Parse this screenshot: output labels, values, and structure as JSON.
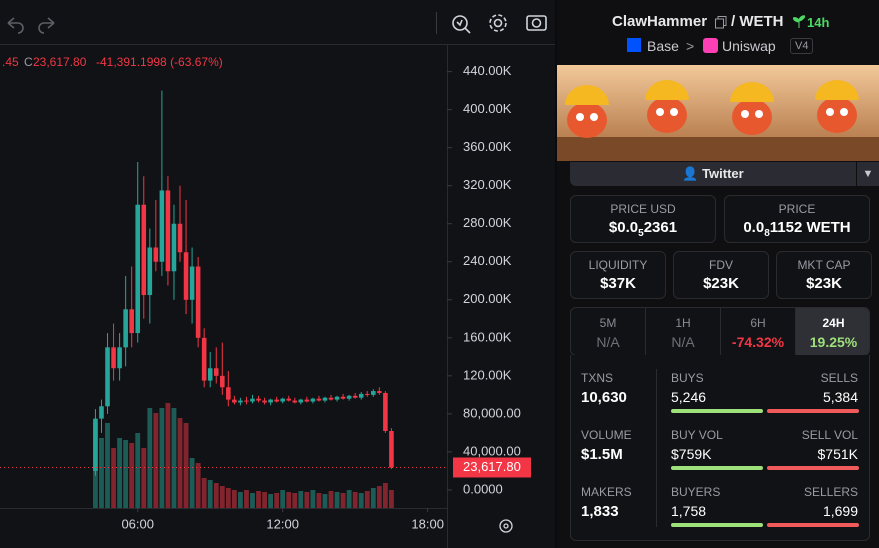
{
  "toolbar": {
    "legend": {
      "prefix": ".45",
      "c_label": "C",
      "close": "23,617.80",
      "change": "-41,391.1998 (-63.67%)"
    }
  },
  "chart": {
    "type": "candlestick",
    "x": [
      4.25,
      4.5,
      4.75,
      5,
      5.25,
      5.5,
      5.75,
      6,
      6.25,
      6.5,
      6.75,
      7,
      7.25,
      7.5,
      7.75,
      8,
      8.25,
      8.5,
      8.75,
      9,
      9.25,
      9.5,
      9.75,
      10,
      10.25,
      10.5,
      10.75,
      11,
      11.25,
      11.5,
      11.75,
      12,
      12.25,
      12.5,
      12.75,
      13,
      13.25,
      13.5,
      13.75,
      14,
      14.25,
      14.5,
      14.75,
      15,
      15.25,
      15.5,
      15.75,
      16,
      16.25,
      16.5
    ],
    "open": [
      20000,
      75000,
      88000,
      150000,
      128000,
      150000,
      190000,
      165000,
      300000,
      205000,
      255000,
      240000,
      315000,
      230000,
      280000,
      250000,
      200000,
      235000,
      160000,
      115000,
      128000,
      120000,
      108000,
      95000,
      92000,
      94000,
      93000,
      96000,
      94000,
      92000,
      95000,
      93000,
      96000,
      94000,
      92000,
      95000,
      93000,
      96000,
      94000,
      97000,
      95000,
      98000,
      96000,
      99000,
      97000,
      101000,
      100000,
      104000,
      102000,
      62000
    ],
    "high": [
      85000,
      95000,
      165000,
      175000,
      165000,
      225000,
      235000,
      345000,
      330000,
      275000,
      305000,
      420000,
      330000,
      300000,
      320000,
      305000,
      255000,
      245000,
      170000,
      145000,
      150000,
      155000,
      125000,
      99000,
      97000,
      98000,
      100000,
      99000,
      97000,
      96000,
      98000,
      97000,
      99000,
      97000,
      96000,
      98000,
      97000,
      99000,
      98000,
      100000,
      99000,
      101000,
      100000,
      102000,
      103000,
      104000,
      106000,
      108000,
      104000,
      65000
    ],
    "low": [
      15000,
      60000,
      80000,
      115000,
      115000,
      130000,
      150000,
      155000,
      180000,
      175000,
      230000,
      225000,
      215000,
      200000,
      240000,
      185000,
      175000,
      150000,
      108000,
      108000,
      112000,
      100000,
      88000,
      90000,
      89000,
      90000,
      91000,
      92000,
      90000,
      89000,
      92000,
      91000,
      93000,
      91000,
      90000,
      92000,
      91000,
      93000,
      92000,
      94000,
      93000,
      95000,
      94000,
      96000,
      95000,
      98000,
      98000,
      100000,
      60000,
      22000
    ],
    "close": [
      75000,
      88000,
      150000,
      128000,
      150000,
      190000,
      165000,
      300000,
      205000,
      255000,
      240000,
      315000,
      230000,
      280000,
      250000,
      200000,
      235000,
      160000,
      115000,
      128000,
      120000,
      108000,
      95000,
      92000,
      94000,
      93000,
      96000,
      94000,
      92000,
      95000,
      93000,
      96000,
      94000,
      92000,
      95000,
      93000,
      96000,
      94000,
      97000,
      95000,
      98000,
      96000,
      99000,
      97000,
      101000,
      100000,
      104000,
      102000,
      62000,
      23617.8
    ],
    "volume": [
      85,
      70,
      85,
      60,
      70,
      68,
      65,
      75,
      60,
      100,
      95,
      100,
      105,
      100,
      90,
      85,
      50,
      45,
      30,
      28,
      25,
      22,
      20,
      18,
      16,
      18,
      15,
      17,
      16,
      14,
      15,
      18,
      16,
      15,
      17,
      16,
      18,
      15,
      14,
      17,
      16,
      15,
      18,
      16,
      15,
      17,
      20,
      22,
      25,
      18
    ],
    "up_color": "#26a69a",
    "down_color": "#f23645",
    "xlim": [
      0.3,
      18.8
    ],
    "xticks": [
      {
        "value": 6,
        "label": "06:00"
      },
      {
        "value": 12,
        "label": "12:00"
      },
      {
        "value": 18,
        "label": "18:00"
      }
    ],
    "ylim": [
      -19000,
      468000
    ],
    "yticks": [
      {
        "value": 0,
        "label": "0.0000"
      },
      {
        "value": 40000,
        "label": "40,000.00"
      },
      {
        "value": 80000,
        "label": "80,000.00"
      },
      {
        "value": 120000,
        "label": "120.00K"
      },
      {
        "value": 160000,
        "label": "160.00K"
      },
      {
        "value": 200000,
        "label": "200.00K"
      },
      {
        "value": 240000,
        "label": "240.00K"
      },
      {
        "value": 280000,
        "label": "280.00K"
      },
      {
        "value": 320000,
        "label": "320.00K"
      },
      {
        "value": 360000,
        "label": "360.00K"
      },
      {
        "value": 400000,
        "label": "400.00K"
      },
      {
        "value": 440000,
        "label": "440.00K"
      }
    ],
    "last_price": {
      "value": 23617.8,
      "label": "23,617.80"
    }
  },
  "panel": {
    "token": "ClawHammer",
    "quote": "/ WETH",
    "age": "14h",
    "chain": "Base",
    "sep": ">",
    "dex": "Uniswap",
    "version": "V4",
    "twitter": "Twitter",
    "price_usd": {
      "label": "PRICE USD",
      "pre": "$0.0",
      "sub": "5",
      "post": "2361"
    },
    "price": {
      "label": "PRICE",
      "pre": "0.0",
      "sub": "8",
      "post": "1152 WETH"
    },
    "metrics": [
      {
        "label": "LIQUIDITY",
        "value": "$37K"
      },
      {
        "label": "FDV",
        "value": "$23K"
      },
      {
        "label": "MKT CAP",
        "value": "$23K"
      }
    ],
    "tabs": [
      {
        "label": "5M",
        "value": "N/A"
      },
      {
        "label": "1H",
        "value": "N/A"
      },
      {
        "label": "6H",
        "value": "-74.32%"
      },
      {
        "label": "24H",
        "value": "19.25%"
      }
    ],
    "stats": [
      {
        "label": "TXNS",
        "value": "10,630",
        "left_label": "BUYS",
        "left": "5,246",
        "right_label": "SELLS",
        "right": "5,384"
      },
      {
        "label": "VOLUME",
        "value": "$1.5M",
        "left_label": "BUY VOL",
        "left": "$759K",
        "right_label": "SELL VOL",
        "right": "$751K"
      },
      {
        "label": "MAKERS",
        "value": "1,833",
        "left_label": "BUYERS",
        "left": "1,758",
        "right_label": "SELLERS",
        "right": "1,699"
      }
    ]
  }
}
